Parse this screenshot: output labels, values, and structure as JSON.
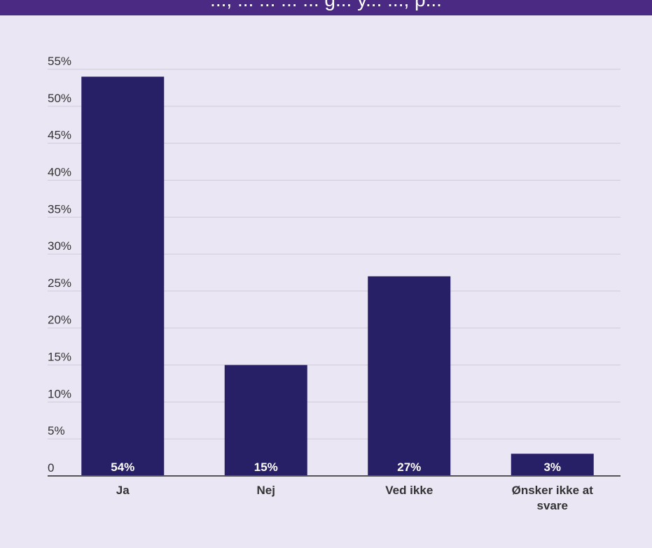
{
  "header": {
    "title_fragment": "..., ... ... ... ... g... y... ..., p..."
  },
  "colors": {
    "background": "#ebe6f4",
    "banner": "#4a2a83",
    "bar": "#272066",
    "gridline": "#cfcbd8",
    "axis": "#555555",
    "text": "#333333",
    "data_label": "#ffffff"
  },
  "chart_data": {
    "type": "bar",
    "categories": [
      "Ja",
      "Nej",
      "Ved ikke",
      "Ønsker ikke at svare"
    ],
    "category_labels": [
      [
        "Ja"
      ],
      [
        "Nej"
      ],
      [
        "Ved ikke"
      ],
      [
        "Ønsker ikke at",
        "svare"
      ]
    ],
    "values": [
      54,
      15,
      27,
      3
    ],
    "data_labels": [
      "54%",
      "15%",
      "27%",
      "3%"
    ],
    "yticks": [
      0,
      5,
      10,
      15,
      20,
      25,
      30,
      35,
      40,
      45,
      50,
      55
    ],
    "ytick_labels": [
      "0",
      "5%",
      "10%",
      "15%",
      "20%",
      "25%",
      "30%",
      "35%",
      "40%",
      "45%",
      "50%",
      "55%"
    ],
    "ylim": [
      0,
      55
    ],
    "grid": true,
    "legend": "none"
  }
}
